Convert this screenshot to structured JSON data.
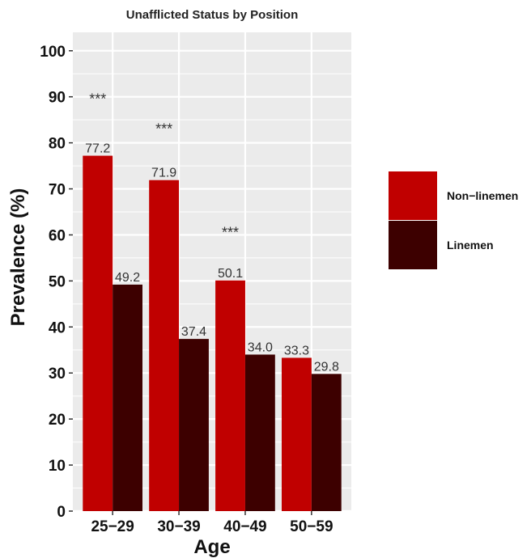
{
  "chart_data": {
    "type": "bar",
    "title": "Unafflicted Status by Position",
    "xlabel": "Age",
    "ylabel": "Prevalence (%)",
    "categories": [
      "25−29",
      "30−39",
      "40−49",
      "50−59"
    ],
    "series": [
      {
        "name": "Non−linemen",
        "color": "#c00000",
        "values": [
          77.2,
          71.9,
          50.1,
          33.3
        ],
        "labels": [
          "77.2",
          "71.9",
          "50.1",
          "33.3"
        ]
      },
      {
        "name": "Linemen",
        "color": "#3d0000",
        "values": [
          49.2,
          37.4,
          34.0,
          29.8
        ],
        "labels": [
          "49.2",
          "37.4",
          "34.0",
          "29.8"
        ]
      }
    ],
    "yticks": [
      0,
      10,
      20,
      30,
      40,
      50,
      60,
      70,
      80,
      90,
      100
    ],
    "ylim": [
      0,
      104
    ],
    "annotations": [
      {
        "category": "25−29",
        "text": "***",
        "y": 89.5
      },
      {
        "category": "30−39",
        "text": "***",
        "y": 83
      },
      {
        "category": "40−49",
        "text": "***",
        "y": 60.5
      }
    ],
    "grid": true,
    "legend_position": "right"
  }
}
